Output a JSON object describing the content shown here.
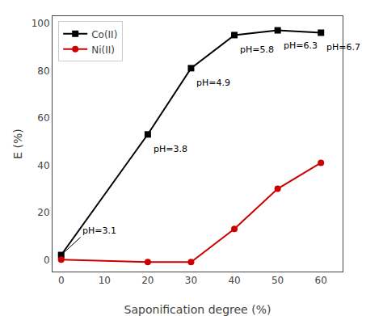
{
  "chart_data": {
    "type": "line",
    "x": [
      0,
      20,
      30,
      40,
      50,
      60
    ],
    "series": [
      {
        "name": "Co(II)",
        "color": "#000000",
        "marker": "square",
        "values": [
          2,
          53,
          81,
          95,
          97,
          96
        ]
      },
      {
        "name": "Ni(II)",
        "color": "#cc0000",
        "marker": "circle",
        "values": [
          0,
          -1,
          -1,
          13,
          30,
          41
        ]
      }
    ],
    "xlabel": "Saponification degree (%)",
    "ylabel": "E (%)",
    "xlim": [
      -2,
      65
    ],
    "ylim": [
      -5,
      103
    ],
    "xticks": [
      0,
      10,
      20,
      30,
      40,
      50,
      60
    ],
    "yticks": [
      0,
      20,
      40,
      60,
      80,
      100
    ],
    "grid": false,
    "legend": "upper left",
    "annotations": [
      {
        "text": "pH=3.1",
        "x": 0,
        "y": 2
      },
      {
        "text": "pH=3.8",
        "x": 20,
        "y": 53
      },
      {
        "text": "pH=4.9",
        "x": 30,
        "y": 81
      },
      {
        "text": "pH=5.8",
        "x": 40,
        "y": 95
      },
      {
        "text": "pH=6.3",
        "x": 50,
        "y": 97
      },
      {
        "text": "pH=6.7",
        "x": 60,
        "y": 96
      }
    ]
  }
}
